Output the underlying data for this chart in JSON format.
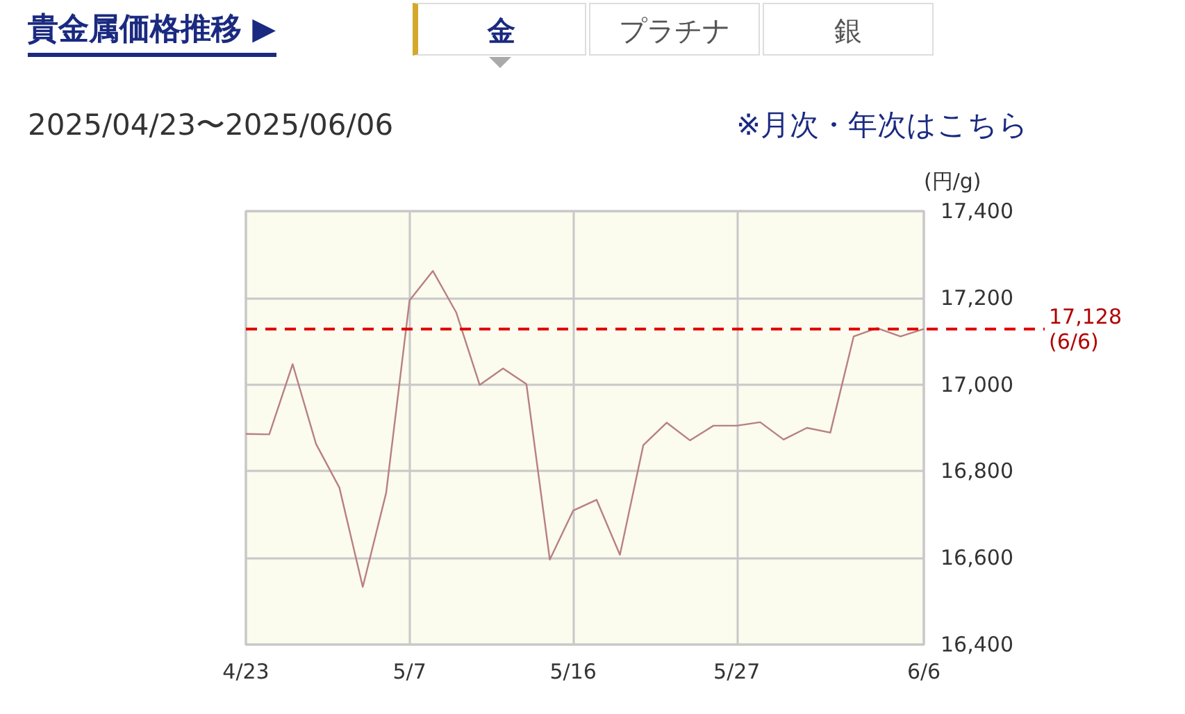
{
  "chart_data": {
    "type": "line",
    "title": "貴金属価格推移 ▶",
    "subtitle": "2025/04/23〜2025/06/06",
    "ylabel": "(円/g)",
    "annotations": [
      "金",
      "プラチナ",
      "銀",
      "※月次・年次はこちら"
    ],
    "categories": [
      "4/23",
      null,
      null,
      null,
      null,
      null,
      null,
      "5/7",
      null,
      null,
      null,
      null,
      null,
      null,
      "5/16",
      null,
      null,
      null,
      null,
      null,
      null,
      "5/27",
      null,
      null,
      null,
      null,
      null,
      null,
      null,
      "6/6"
    ],
    "series": [
      {
        "color": "#b88080",
        "values": [
          16886,
          16885,
          17047,
          16863,
          16762,
          16533,
          16750,
          17194,
          17262,
          17166,
          16999,
          17037,
          17001,
          16596,
          16709,
          16734,
          16607,
          16860,
          16912,
          16871,
          16905,
          16905,
          16913,
          16873,
          16900,
          16889,
          17111,
          17130,
          17111,
          17128
        ]
      }
    ],
    "ylim": [
      16400,
      17400
    ],
    "yticks": [
      {
        "value": 16400,
        "label": "16,400"
      },
      {
        "value": 16600,
        "label": "16,600"
      },
      {
        "value": 16800,
        "label": "16,800"
      },
      {
        "value": 17000,
        "label": "17,000"
      },
      {
        "value": 17200,
        "label": "17,200"
      },
      {
        "value": 17400,
        "label": "17,400"
      }
    ],
    "ref_lines": [
      {
        "axis": "y",
        "value": 17128,
        "label": "17,128\n(6/6)",
        "color": "#e00000",
        "line_style": "dashed"
      }
    ],
    "grid": true,
    "marker": "none",
    "line_style": "solid"
  }
}
